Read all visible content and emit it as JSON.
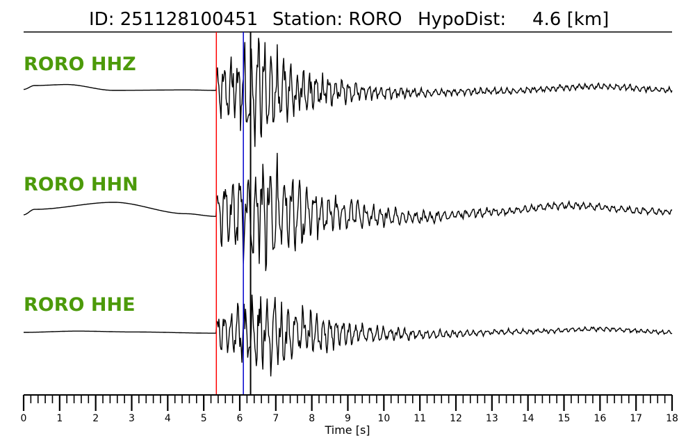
{
  "header": {
    "title_parts": [
      "ID: 251128100451",
      "Station: RORO",
      "HypoDist:",
      "4.6 [km]"
    ]
  },
  "colors": {
    "channel_label": "#4c9a0a",
    "trace": "#000000",
    "p_pick": "#ff0000",
    "s_pick": "#0000cc",
    "pick_black": "#000000"
  },
  "chart_data": {
    "type": "line",
    "title": "ID: 251128100451   Station: RORO   HypoDist:     4.6 [km]",
    "xlabel": "Time [s]",
    "xlim": [
      0,
      18
    ],
    "x_ticks": [
      "0",
      "1",
      "2",
      "3",
      "4",
      "5",
      "6",
      "7",
      "8",
      "9",
      "10",
      "11",
      "12",
      "13",
      "14",
      "15",
      "16",
      "17",
      "18"
    ],
    "minor_tick_step": 0.2,
    "picks": [
      {
        "time": 5.35,
        "color": "#ff0000"
      },
      {
        "time": 6.1,
        "color": "#0000cc"
      },
      {
        "time": 6.3,
        "color": "#000000"
      }
    ],
    "series": [
      {
        "name": "RORO HHZ",
        "onset": 5.35,
        "peak_time": 6.6,
        "peak_amp": 1.0,
        "decay": 1.3,
        "coda": 0.06,
        "noise_freq": 5.5,
        "seed": 3,
        "pre_event": [
          [
            0,
            0.02
          ],
          [
            0.3,
            0.1
          ],
          [
            1.2,
            0.12
          ],
          [
            2.5,
            0.0
          ],
          [
            4.5,
            0.01
          ],
          [
            5.35,
            0.0
          ]
        ],
        "post_trend": [
          [
            7,
            0
          ],
          [
            11,
            -0.05
          ],
          [
            13,
            -0.02
          ],
          [
            16,
            0.08
          ],
          [
            18,
            0.01
          ]
        ]
      },
      {
        "name": "RORO HHN",
        "onset": 5.35,
        "peak_time": 6.75,
        "peak_amp": 1.0,
        "decay": 1.5,
        "coda": 0.06,
        "noise_freq": 5.0,
        "seed": 7,
        "pre_event": [
          [
            0,
            -0.05
          ],
          [
            0.3,
            0.05
          ],
          [
            2.5,
            0.18
          ],
          [
            4.5,
            -0.03
          ],
          [
            5.35,
            -0.08
          ]
        ],
        "post_trend": [
          [
            7,
            0
          ],
          [
            11,
            -0.1
          ],
          [
            13,
            0.0
          ],
          [
            15,
            0.12
          ],
          [
            18,
            0.0
          ]
        ]
      },
      {
        "name": "RORO HHE",
        "onset": 5.35,
        "peak_time": 6.9,
        "peak_amp": 0.9,
        "decay": 1.6,
        "coda": 0.05,
        "noise_freq": 5.2,
        "seed": 11,
        "pre_event": [
          [
            0,
            0.0
          ],
          [
            1.5,
            0.03
          ],
          [
            3.0,
            0.01
          ],
          [
            5.35,
            -0.02
          ]
        ],
        "post_trend": [
          [
            7,
            0
          ],
          [
            11,
            -0.05
          ],
          [
            14,
            0.02
          ],
          [
            16,
            0.08
          ],
          [
            18,
            0.0
          ]
        ]
      }
    ]
  }
}
